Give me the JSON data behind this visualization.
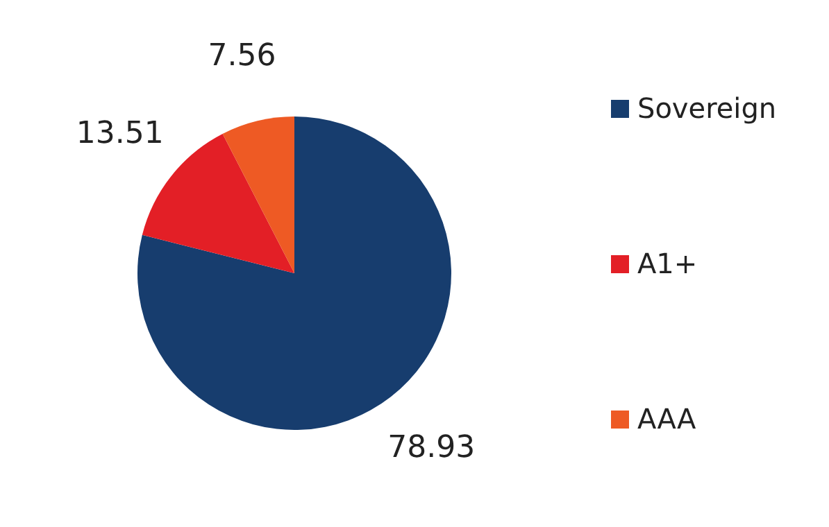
{
  "chart_data": {
    "type": "pie",
    "categories": [
      "Sovereign",
      "A1+",
      "AAA"
    ],
    "values": [
      78.93,
      13.51,
      7.56
    ],
    "colors": [
      "#173d6e",
      "#e31f26",
      "#ee5a24"
    ],
    "data_labels": true,
    "legend": "right"
  }
}
